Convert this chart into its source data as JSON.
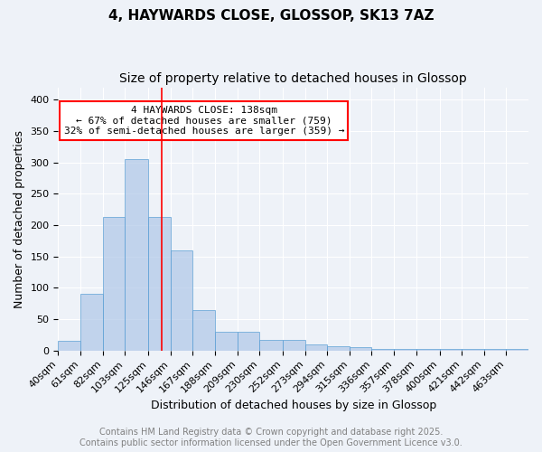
{
  "title_line1": "4, HAYWARDS CLOSE, GLOSSOP, SK13 7AZ",
  "title_line2": "Size of property relative to detached houses in Glossop",
  "xlabel": "Distribution of detached houses by size in Glossop",
  "ylabel": "Number of detached properties",
  "bin_labels": [
    "40sqm",
    "61sqm",
    "82sqm",
    "103sqm",
    "125sqm",
    "146sqm",
    "167sqm",
    "188sqm",
    "209sqm",
    "230sqm",
    "252sqm",
    "273sqm",
    "294sqm",
    "315sqm",
    "336sqm",
    "357sqm",
    "378sqm",
    "400sqm",
    "421sqm",
    "442sqm",
    "463sqm"
  ],
  "bin_edges": [
    40,
    61,
    82,
    103,
    125,
    146,
    167,
    188,
    209,
    230,
    252,
    273,
    294,
    315,
    336,
    357,
    378,
    400,
    421,
    442,
    463,
    484
  ],
  "bar_heights": [
    15,
    90,
    213,
    305,
    213,
    160,
    65,
    30,
    30,
    17,
    17,
    10,
    7,
    5,
    3,
    3,
    3,
    2,
    3,
    2,
    3
  ],
  "bar_color": "#aec6e8",
  "bar_edge_color": "#5a9fd4",
  "bar_alpha": 0.7,
  "red_line_x": 138,
  "annotation_text": "4 HAYWARDS CLOSE: 138sqm\n← 67% of detached houses are smaller (759)\n32% of semi-detached houses are larger (359) →",
  "annotation_box_color": "white",
  "annotation_box_edge_color": "red",
  "ylim": [
    0,
    420
  ],
  "yticks": [
    0,
    50,
    100,
    150,
    200,
    250,
    300,
    350,
    400
  ],
  "background_color": "#eef2f8",
  "plot_bg_color": "#eef2f8",
  "grid_color": "white",
  "footer_line1": "Contains HM Land Registry data © Crown copyright and database right 2025.",
  "footer_line2": "Contains public sector information licensed under the Open Government Licence v3.0.",
  "title_fontsize": 11,
  "subtitle_fontsize": 10,
  "axis_label_fontsize": 9,
  "tick_fontsize": 8,
  "annotation_fontsize": 8,
  "footer_fontsize": 7
}
